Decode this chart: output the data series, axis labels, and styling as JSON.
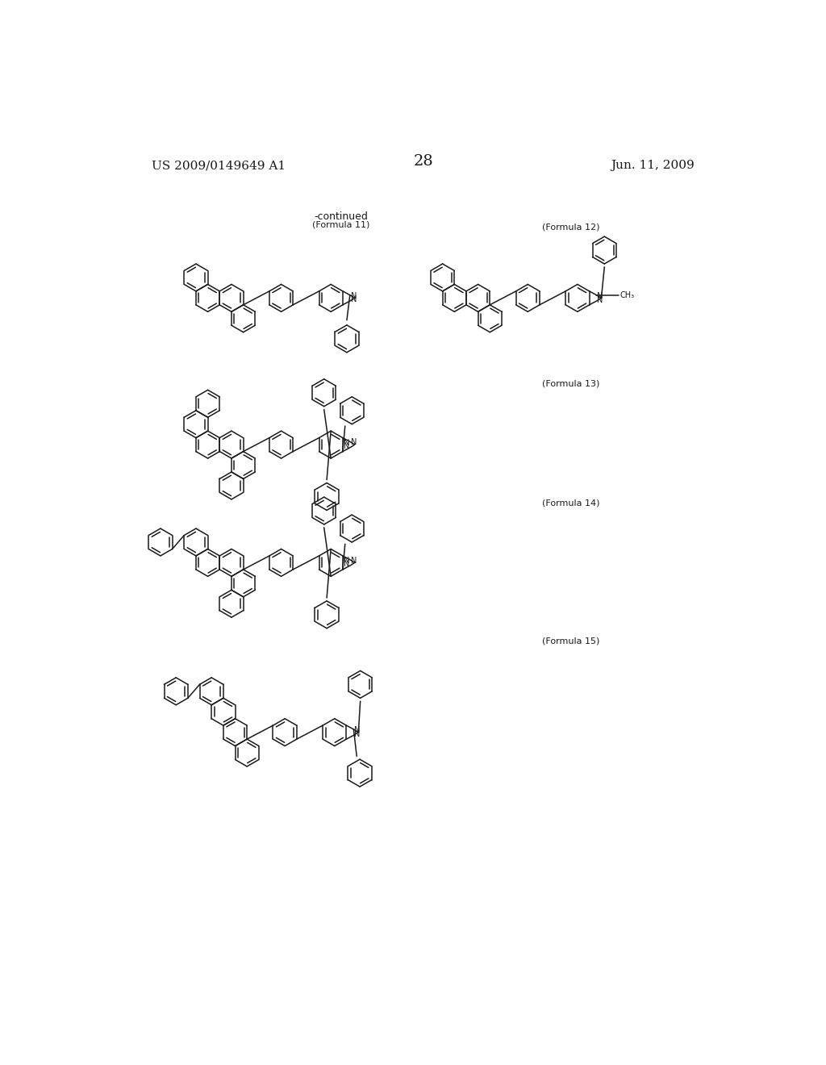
{
  "page_number": "28",
  "header_left": "US 2009/0149649 A1",
  "header_right": "Jun. 11, 2009",
  "continued_label": "-continued",
  "background_color": "#ffffff",
  "line_color": "#1a1a1a",
  "text_color": "#1a1a1a"
}
